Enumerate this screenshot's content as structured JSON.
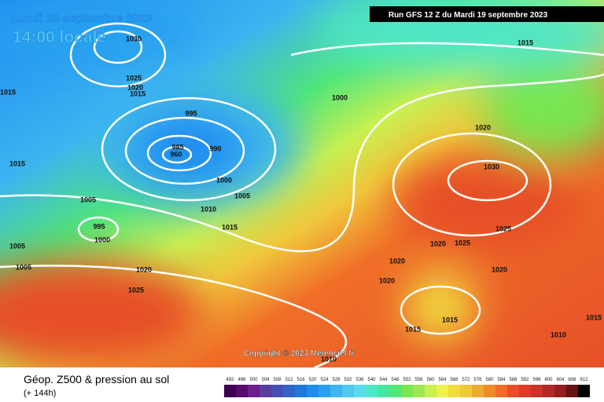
{
  "header": {
    "date": "Lundi 25 septembre 2023",
    "time": "14:00 locale",
    "run": "Run GFS 12 Z du Mardi 19 septembre 2023"
  },
  "copyright": "Copyright © 2023 Meteociel.fr",
  "legend": {
    "title": "Géop. Z500 & pression au sol",
    "subtitle": "(+ 144h)",
    "levels": [
      492,
      496,
      500,
      504,
      508,
      512,
      516,
      520,
      524,
      528,
      532,
      536,
      540,
      544,
      548,
      552,
      556,
      560,
      564,
      568,
      572,
      576,
      580,
      584,
      588,
      592,
      596,
      600,
      604,
      608,
      612
    ],
    "colors": [
      "#3c0050",
      "#5a0a6e",
      "#6e1e8c",
      "#5a3ca0",
      "#4650b4",
      "#3264c8",
      "#1e78dc",
      "#1e8cf0",
      "#28a0f0",
      "#3cb4f0",
      "#50c8f0",
      "#5adcf0",
      "#50e6c8",
      "#46e6a0",
      "#50e678",
      "#78e650",
      "#a0e650",
      "#c8f050",
      "#f0f050",
      "#f0dc3c",
      "#f0c83c",
      "#f0aa32",
      "#f08c28",
      "#f06e28",
      "#e65028",
      "#dc3c28",
      "#c83228",
      "#b42828",
      "#961e1e",
      "#641414",
      "#000000"
    ]
  },
  "isobars": {
    "labels": [
      "1030",
      "1025",
      "1020",
      "1015",
      "1015",
      "995",
      "985",
      "960",
      "990",
      "1000",
      "1005",
      "1010",
      "1015",
      "1000",
      "1015",
      "1020",
      "1030",
      "1025",
      "1020",
      "1025",
      "1020",
      "1020",
      "1020",
      "1015",
      "1015",
      "1010",
      "1015",
      "1015",
      "1005",
      "995",
      "1000",
      "1005",
      "1005",
      "1020",
      "1025",
      "1010"
    ]
  }
}
